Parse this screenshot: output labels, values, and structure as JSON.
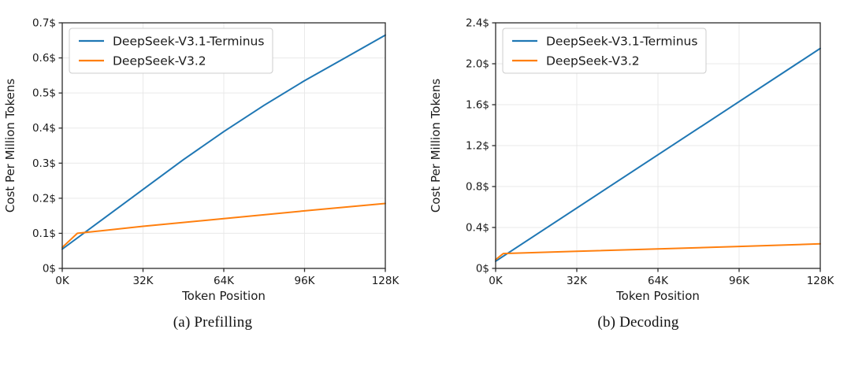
{
  "figure": {
    "background": "#ffffff",
    "grid_color": "#e9e9e9",
    "spine_color": "#2b2b2b",
    "series_colors": {
      "blue": "#1f77b4",
      "orange": "#ff7f0e"
    }
  },
  "chart_data": [
    {
      "type": "line",
      "title": "(a) Prefilling",
      "xlabel": "Token Position",
      "ylabel": "Cost Per Million Tokens",
      "xlim": [
        0,
        128
      ],
      "ylim": [
        0,
        0.7
      ],
      "x_ticks": [
        0,
        32,
        64,
        96,
        128
      ],
      "x_tick_labels": [
        "0K",
        "32K",
        "64K",
        "96K",
        "128K"
      ],
      "y_ticks": [
        0,
        0.1,
        0.2,
        0.3,
        0.4,
        0.5,
        0.6,
        0.7
      ],
      "y_tick_labels": [
        "0$",
        "0.1$",
        "0.2$",
        "0.3$",
        "0.4$",
        "0.5$",
        "0.6$",
        "0.7$"
      ],
      "grid": true,
      "legend": {
        "position": "upper-left",
        "entries": [
          "DeepSeek-V3.1-Terminus",
          "DeepSeek-V3.2"
        ]
      },
      "series": [
        {
          "name": "DeepSeek-V3.1-Terminus",
          "color": "#1f77b4",
          "x": [
            0,
            16,
            32,
            48,
            64,
            80,
            96,
            112,
            128
          ],
          "y": [
            0.055,
            0.14,
            0.225,
            0.31,
            0.39,
            0.465,
            0.535,
            0.6,
            0.665
          ]
        },
        {
          "name": "DeepSeek-V3.2",
          "color": "#ff7f0e",
          "x": [
            0,
            6,
            32,
            64,
            96,
            128
          ],
          "y": [
            0.06,
            0.1,
            0.12,
            0.142,
            0.164,
            0.185
          ]
        }
      ]
    },
    {
      "type": "line",
      "title": "(b) Decoding",
      "xlabel": "Token Position",
      "ylabel": "Cost Per Million Tokens",
      "xlim": [
        0,
        128
      ],
      "ylim": [
        0,
        2.4
      ],
      "x_ticks": [
        0,
        32,
        64,
        96,
        128
      ],
      "x_tick_labels": [
        "0K",
        "32K",
        "64K",
        "96K",
        "128K"
      ],
      "y_ticks": [
        0,
        0.4,
        0.8,
        1.2,
        1.6,
        2.0,
        2.4
      ],
      "y_tick_labels": [
        "0$",
        "0.4$",
        "0.8$",
        "1.2$",
        "1.6$",
        "2.0$",
        "2.4$"
      ],
      "grid": true,
      "legend": {
        "position": "upper-left",
        "entries": [
          "DeepSeek-V3.1-Terminus",
          "DeepSeek-V3.2"
        ]
      },
      "series": [
        {
          "name": "DeepSeek-V3.1-Terminus",
          "color": "#1f77b4",
          "x": [
            0,
            128
          ],
          "y": [
            0.07,
            2.15
          ]
        },
        {
          "name": "DeepSeek-V3.2",
          "color": "#ff7f0e",
          "x": [
            0,
            3,
            32,
            64,
            96,
            128
          ],
          "y": [
            0.085,
            0.145,
            0.168,
            0.19,
            0.215,
            0.24
          ]
        }
      ]
    }
  ]
}
